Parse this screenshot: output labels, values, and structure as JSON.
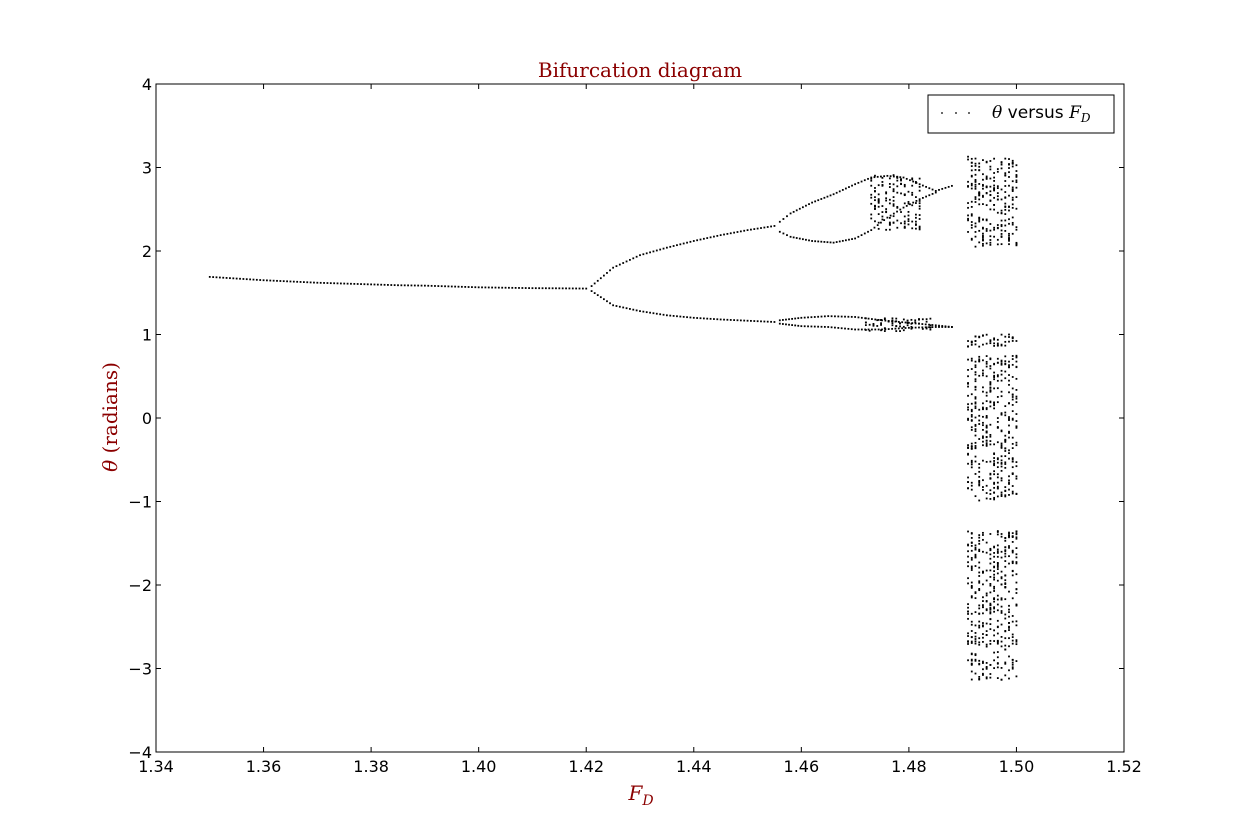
{
  "chart_data": {
    "type": "scatter",
    "title": "Bifurcation diagram",
    "xlabel_var": "F",
    "xlabel_sub": "D",
    "ylabel_var": "θ",
    "ylabel_rest": " (radians)",
    "xlim": [
      1.34,
      1.52
    ],
    "ylim": [
      -4,
      4
    ],
    "x_ticks": [
      1.34,
      1.36,
      1.38,
      1.4,
      1.42,
      1.44,
      1.46,
      1.48,
      1.5,
      1.52
    ],
    "x_tick_labels": [
      "1.34",
      "1.36",
      "1.38",
      "1.40",
      "1.42",
      "1.44",
      "1.46",
      "1.48",
      "1.50",
      "1.52"
    ],
    "y_ticks": [
      4,
      3,
      2,
      1,
      0,
      -1,
      -2,
      -3,
      -4
    ],
    "y_tick_labels": [
      "4",
      "3",
      "2",
      "1",
      "0",
      "−1",
      "−2",
      "−3",
      "−4"
    ],
    "legend": {
      "position": "top-right",
      "marker_label_var": "θ",
      "marker_label_mid": " versus ",
      "marker_label_var2": "F",
      "marker_label_sub": "D"
    },
    "grid": false,
    "colors": {
      "title": "#8b0000",
      "axis_label": "#8b0000",
      "points": "#000000"
    },
    "series": [
      {
        "x": [
          1.35,
          1.355,
          1.36,
          1.365,
          1.37,
          1.375,
          1.38,
          1.385,
          1.39,
          1.395,
          1.4,
          1.405,
          1.41,
          1.415,
          1.42
        ],
        "y": [
          1.69,
          1.67,
          1.65,
          1.635,
          1.62,
          1.61,
          1.6,
          1.59,
          1.585,
          1.575,
          1.565,
          1.56,
          1.555,
          1.553,
          1.55
        ]
      },
      {
        "x": [
          1.421,
          1.425,
          1.43,
          1.435,
          1.44,
          1.445,
          1.45,
          1.455
        ],
        "y": [
          1.58,
          1.8,
          1.95,
          2.04,
          2.12,
          2.19,
          2.25,
          2.3
        ]
      },
      {
        "x": [
          1.421,
          1.425,
          1.43,
          1.435,
          1.44,
          1.445,
          1.45,
          1.455
        ],
        "y": [
          1.52,
          1.35,
          1.28,
          1.23,
          1.2,
          1.18,
          1.165,
          1.15
        ]
      },
      {
        "x": [
          1.456,
          1.458,
          1.462,
          1.466,
          1.47,
          1.473,
          1.476,
          1.479,
          1.482,
          1.485,
          1.488
        ],
        "y": [
          2.35,
          2.45,
          2.58,
          2.68,
          2.8,
          2.88,
          2.9,
          2.88,
          2.8,
          2.72,
          2.78
        ]
      },
      {
        "x": [
          1.456,
          1.458,
          1.462,
          1.466,
          1.47,
          1.473,
          1.476,
          1.479,
          1.482,
          1.485
        ],
        "y": [
          2.23,
          2.17,
          2.12,
          2.1,
          2.15,
          2.25,
          2.4,
          2.52,
          2.62,
          2.7
        ]
      },
      {
        "x": [
          1.456,
          1.46,
          1.465,
          1.47,
          1.475,
          1.48,
          1.485,
          1.488
        ],
        "y": [
          1.17,
          1.2,
          1.22,
          1.21,
          1.17,
          1.14,
          1.11,
          1.09
        ]
      },
      {
        "x": [
          1.456,
          1.46,
          1.465,
          1.47,
          1.475,
          1.48,
          1.485,
          1.488
        ],
        "y": [
          1.13,
          1.1,
          1.09,
          1.06,
          1.06,
          1.08,
          1.09,
          1.09
        ]
      }
    ],
    "bands": [
      {
        "x": [
          1.473,
          1.482
        ],
        "y": [
          2.25,
          2.92
        ]
      },
      {
        "x": [
          1.472,
          1.484
        ],
        "y": [
          1.04,
          1.2
        ]
      },
      {
        "x": [
          1.491,
          1.5
        ],
        "y": [
          2.05,
          3.14
        ]
      },
      {
        "x": [
          1.491,
          1.5
        ],
        "y": [
          0.85,
          1.0
        ]
      },
      {
        "x": [
          1.491,
          1.5
        ],
        "y": [
          -3.14,
          -1.35
        ]
      },
      {
        "x": [
          1.491,
          1.5
        ],
        "y": [
          -1.0,
          0.75
        ]
      }
    ]
  }
}
